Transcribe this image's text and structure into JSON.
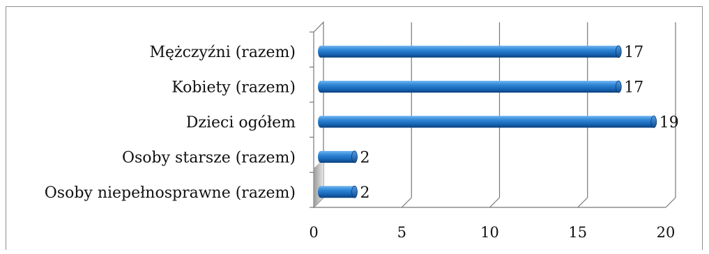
{
  "chart_data": {
    "type": "bar",
    "orientation": "horizontal",
    "style": "3d-cylinder",
    "categories": [
      "Mężczyźni (razem)",
      "Kobiety (razem)",
      "Dzieci ogółem",
      "Osoby starsze (razem)",
      "Osoby niepełnosprawne (razem)"
    ],
    "values": [
      17,
      17,
      19,
      2,
      2
    ],
    "data_labels": [
      "17",
      "17",
      "19",
      "2",
      "2"
    ],
    "xlim": [
      0,
      20
    ],
    "xticks": [
      "0",
      "5",
      "10",
      "15",
      "20"
    ],
    "title": "",
    "xlabel": "",
    "ylabel": "",
    "grid": "vertical",
    "legend": "none",
    "bar_color": "#1f6fc0"
  }
}
